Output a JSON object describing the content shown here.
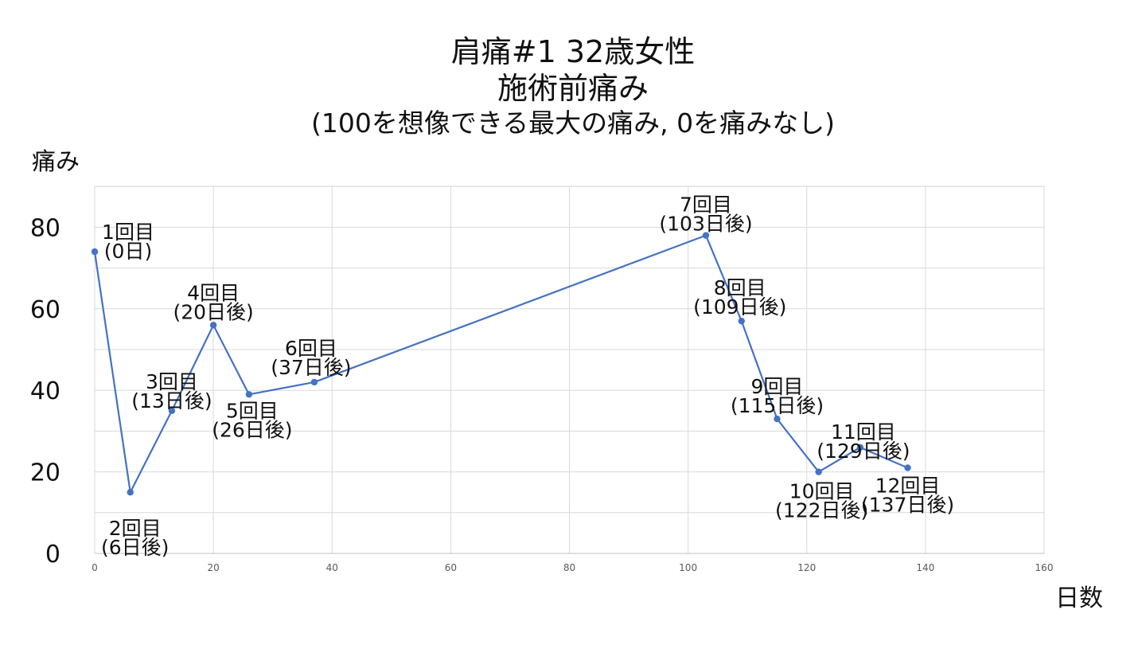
{
  "chart_data": {
    "type": "line",
    "title": "肩痛#1 32歳女性",
    "subtitle": "施術前痛み",
    "note": "(100を想像できる最大の痛み, 0を痛みなし)",
    "ylabel": "痛み",
    "xlabel": "日数",
    "xlim": [
      0,
      160
    ],
    "ylim": [
      0,
      80
    ],
    "x_ticks": [
      "0",
      "20",
      "40",
      "60",
      "80",
      "100",
      "120",
      "140",
      "160"
    ],
    "y_ticks": [
      "0",
      "20",
      "40",
      "60",
      "80"
    ],
    "grid": true,
    "color": "#4472c4",
    "series": [
      {
        "x": [
          0,
          6,
          13,
          20,
          26,
          37,
          103,
          109,
          115,
          122,
          129,
          137
        ],
        "y": [
          74,
          15,
          35,
          56,
          39,
          42,
          78,
          57,
          33,
          20,
          26,
          21
        ]
      }
    ],
    "annotations": [
      {
        "l1": "1回目",
        "l2": "(0日)"
      },
      {
        "l1": "2回目",
        "l2": "(6日後)"
      },
      {
        "l1": "3回目",
        "l2": "(13日後)"
      },
      {
        "l1": "4回目",
        "l2": "(20日後)"
      },
      {
        "l1": "5回目",
        "l2": "(26日後)"
      },
      {
        "l1": "6回目",
        "l2": "(37日後)"
      },
      {
        "l1": "7回目",
        "l2": "(103日後)"
      },
      {
        "l1": "8回目",
        "l2": "(109日後)"
      },
      {
        "l1": "9回目",
        "l2": "(115日後)"
      },
      {
        "l1": "10回目",
        "l2": "(122日後)"
      },
      {
        "l1": "11回目",
        "l2": "(129日後)"
      },
      {
        "l1": "12回目",
        "l2": "(137日後)"
      }
    ]
  }
}
